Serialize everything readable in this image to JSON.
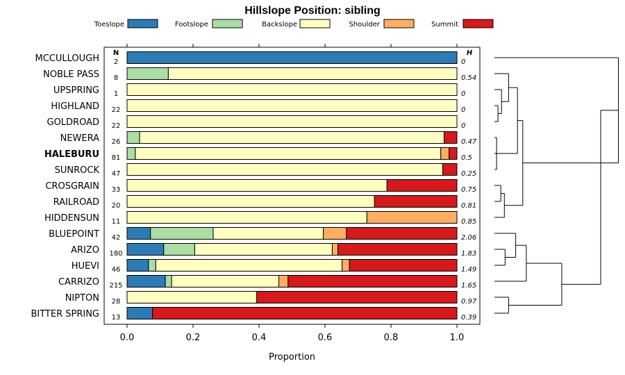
{
  "chart_data": {
    "type": "bar",
    "orientation": "horizontal",
    "stacked": true,
    "title": "Hillslope Position: sibling",
    "xlabel": "Proportion",
    "ylabel": "",
    "xlim": [
      0,
      1
    ],
    "x_ticks": [
      "0.0",
      "0.2",
      "0.4",
      "0.6",
      "0.8",
      "1.0"
    ],
    "x_tick_values": [
      0,
      0.2,
      0.4,
      0.6,
      0.8,
      1.0
    ],
    "legend": {
      "placement": "top"
    },
    "n_header": "N",
    "h_header": "H",
    "colors": {
      "Toeslope": "#2c7bb6",
      "Footslope": "#abdda4",
      "Backslope": "#ffffbf",
      "Shoulder": "#fdae61",
      "Summit": "#d7191c"
    },
    "series_names": [
      "Toeslope",
      "Footslope",
      "Backslope",
      "Shoulder",
      "Summit"
    ],
    "rows": [
      {
        "name": "MCCULLOUGH",
        "n": "2",
        "h": "0",
        "bold": false,
        "values": [
          1.0,
          0,
          0,
          0,
          0
        ]
      },
      {
        "name": "NOBLE PASS",
        "n": "8",
        "h": "0.54",
        "bold": false,
        "values": [
          0,
          0.125,
          0.875,
          0,
          0
        ]
      },
      {
        "name": "UPSPRING",
        "n": "1",
        "h": "0",
        "bold": false,
        "values": [
          0,
          0,
          1.0,
          0,
          0
        ]
      },
      {
        "name": "HIGHLAND",
        "n": "22",
        "h": "0",
        "bold": false,
        "values": [
          0,
          0,
          1.0,
          0,
          0
        ]
      },
      {
        "name": "GOLDROAD",
        "n": "22",
        "h": "0",
        "bold": false,
        "values": [
          0,
          0,
          1.0,
          0,
          0
        ]
      },
      {
        "name": "NEWERA",
        "n": "26",
        "h": "0.47",
        "bold": false,
        "values": [
          0,
          0.038,
          0.923,
          0,
          0.039
        ]
      },
      {
        "name": "HALEBURU",
        "n": "81",
        "h": "0.5",
        "bold": true,
        "values": [
          0,
          0.025,
          0.926,
          0.025,
          0.024
        ]
      },
      {
        "name": "SUNROCK",
        "n": "47",
        "h": "0.25",
        "bold": false,
        "values": [
          0,
          0,
          0.957,
          0,
          0.043
        ]
      },
      {
        "name": "CROSGRAIN",
        "n": "33",
        "h": "0.75",
        "bold": false,
        "values": [
          0,
          0,
          0.788,
          0,
          0.212
        ]
      },
      {
        "name": "RAILROAD",
        "n": "20",
        "h": "0.81",
        "bold": false,
        "values": [
          0,
          0,
          0.75,
          0,
          0.25
        ]
      },
      {
        "name": "HIDDENSUN",
        "n": "11",
        "h": "0.85",
        "bold": false,
        "values": [
          0,
          0,
          0.727,
          0.273,
          0
        ]
      },
      {
        "name": "BLUEPOINT",
        "n": "42",
        "h": "2.06",
        "bold": false,
        "values": [
          0.071,
          0.19,
          0.334,
          0.07,
          0.335
        ]
      },
      {
        "name": "ARIZO",
        "n": "180",
        "h": "1.83",
        "bold": false,
        "values": [
          0.111,
          0.094,
          0.417,
          0.017,
          0.361
        ]
      },
      {
        "name": "HUEVI",
        "n": "46",
        "h": "1.49",
        "bold": false,
        "values": [
          0.065,
          0.022,
          0.565,
          0.022,
          0.326
        ]
      },
      {
        "name": "CARRIZO",
        "n": "215",
        "h": "1.65",
        "bold": false,
        "values": [
          0.116,
          0.019,
          0.325,
          0.028,
          0.512
        ]
      },
      {
        "name": "NIPTON",
        "n": "28",
        "h": "0.97",
        "bold": false,
        "values": [
          0,
          0,
          0.393,
          0,
          0.607
        ]
      },
      {
        "name": "BITTER SPRING",
        "n": "13",
        "h": "0.39",
        "bold": false,
        "values": [
          0.077,
          0,
          0,
          0,
          0.923
        ]
      }
    ],
    "dendrogram": {
      "type": "hierarchical-clustering",
      "merges": [
        [
          3,
          4
        ],
        [
          2,
          -1
        ],
        [
          1,
          -2
        ],
        [
          5,
          7
        ],
        [
          6,
          -4
        ],
        [
          -5,
          -3
        ],
        [
          8,
          9
        ],
        [
          -7,
          10
        ],
        [
          -6,
          -8
        ],
        [
          0,
          -9
        ],
        [
          12,
          13
        ],
        [
          11,
          -11
        ],
        [
          -12,
          14
        ],
        [
          15,
          16
        ],
        [
          -13,
          -14
        ],
        [
          -10,
          -15
        ]
      ],
      "heights": [
        0.1,
        0.2,
        0.4,
        0.06,
        0.1,
        0.65,
        0.18,
        0.28,
        0.8,
        3.5,
        0.3,
        0.6,
        0.9,
        0.4,
        1.9,
        3.0
      ]
    }
  }
}
